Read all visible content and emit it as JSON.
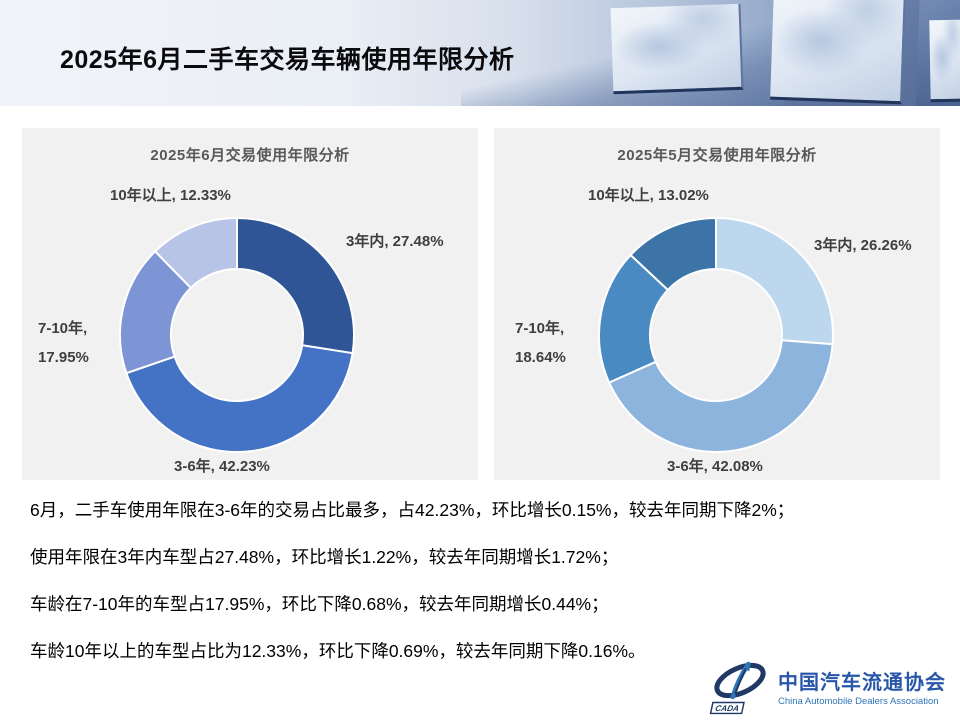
{
  "header": {
    "title": "2025年6月二手车交易车辆使用年限分析"
  },
  "charts": {
    "june": {
      "title": "2025年6月交易使用年限分析",
      "labels": {
        "over10": "10年以上, 12.33%",
        "within3": "3年内, 27.48%",
        "mid_line1": "7-10年,",
        "mid_line2": "17.95%",
        "y3to6": "3-6年, 42.23%"
      }
    },
    "may": {
      "title": "2025年5月交易使用年限分析",
      "labels": {
        "over10": "10年以上, 13.02%",
        "within3": "3年内, 26.26%",
        "mid_line1": "7-10年,",
        "mid_line2": "18.64%",
        "y3to6": "3-6年, 42.08%"
      }
    }
  },
  "chart_data": [
    {
      "type": "pie",
      "subtype": "donut",
      "title": "2025年6月交易使用年限分析",
      "categories": [
        "3年内",
        "3-6年",
        "7-10年",
        "10年以上"
      ],
      "values": [
        27.48,
        42.23,
        17.95,
        12.33
      ],
      "unit": "%",
      "colors": [
        "#2F5597",
        "#4472C4",
        "#7E95D5",
        "#B7C4E8"
      ],
      "start_angle_deg": 0,
      "direction": "clockwise",
      "hole_ratio": 0.565,
      "legend": "none",
      "data_labels": "category-and-percent-outside"
    },
    {
      "type": "pie",
      "subtype": "donut",
      "title": "2025年5月交易使用年限分析",
      "categories": [
        "3年内",
        "3-6年",
        "7-10年",
        "10年以上"
      ],
      "values": [
        26.26,
        42.08,
        18.64,
        13.02
      ],
      "unit": "%",
      "colors": [
        "#BDD7EE",
        "#8DB4DD",
        "#4A8AC2",
        "#3D74A8"
      ],
      "start_angle_deg": 0,
      "direction": "clockwise",
      "hole_ratio": 0.565,
      "legend": "none",
      "data_labels": "category-and-percent-outside"
    }
  ],
  "summary": {
    "lines": [
      "6月，二手车使用年限在3-6年的交易占比最多，占42.23%，环比增长0.15%，较去年同期下降2%；",
      "使用年限在3年内车型占27.48%，环比增长1.22%，较去年同期增长1.72%；",
      "车龄在7-10年的车型占17.95%，环比下降0.68%，较去年同期增长0.44%；",
      "车龄10年以上的车型占比为12.33%，环比下降0.69%，较去年同期下降0.16%。"
    ]
  },
  "footer_logo": {
    "name_cn": "中国汽车流通协会",
    "name_en": "China Automobile Dealers Association",
    "acronym": "CADA",
    "brand_navy": "#1F3864",
    "brand_blue": "#2E75B6"
  }
}
